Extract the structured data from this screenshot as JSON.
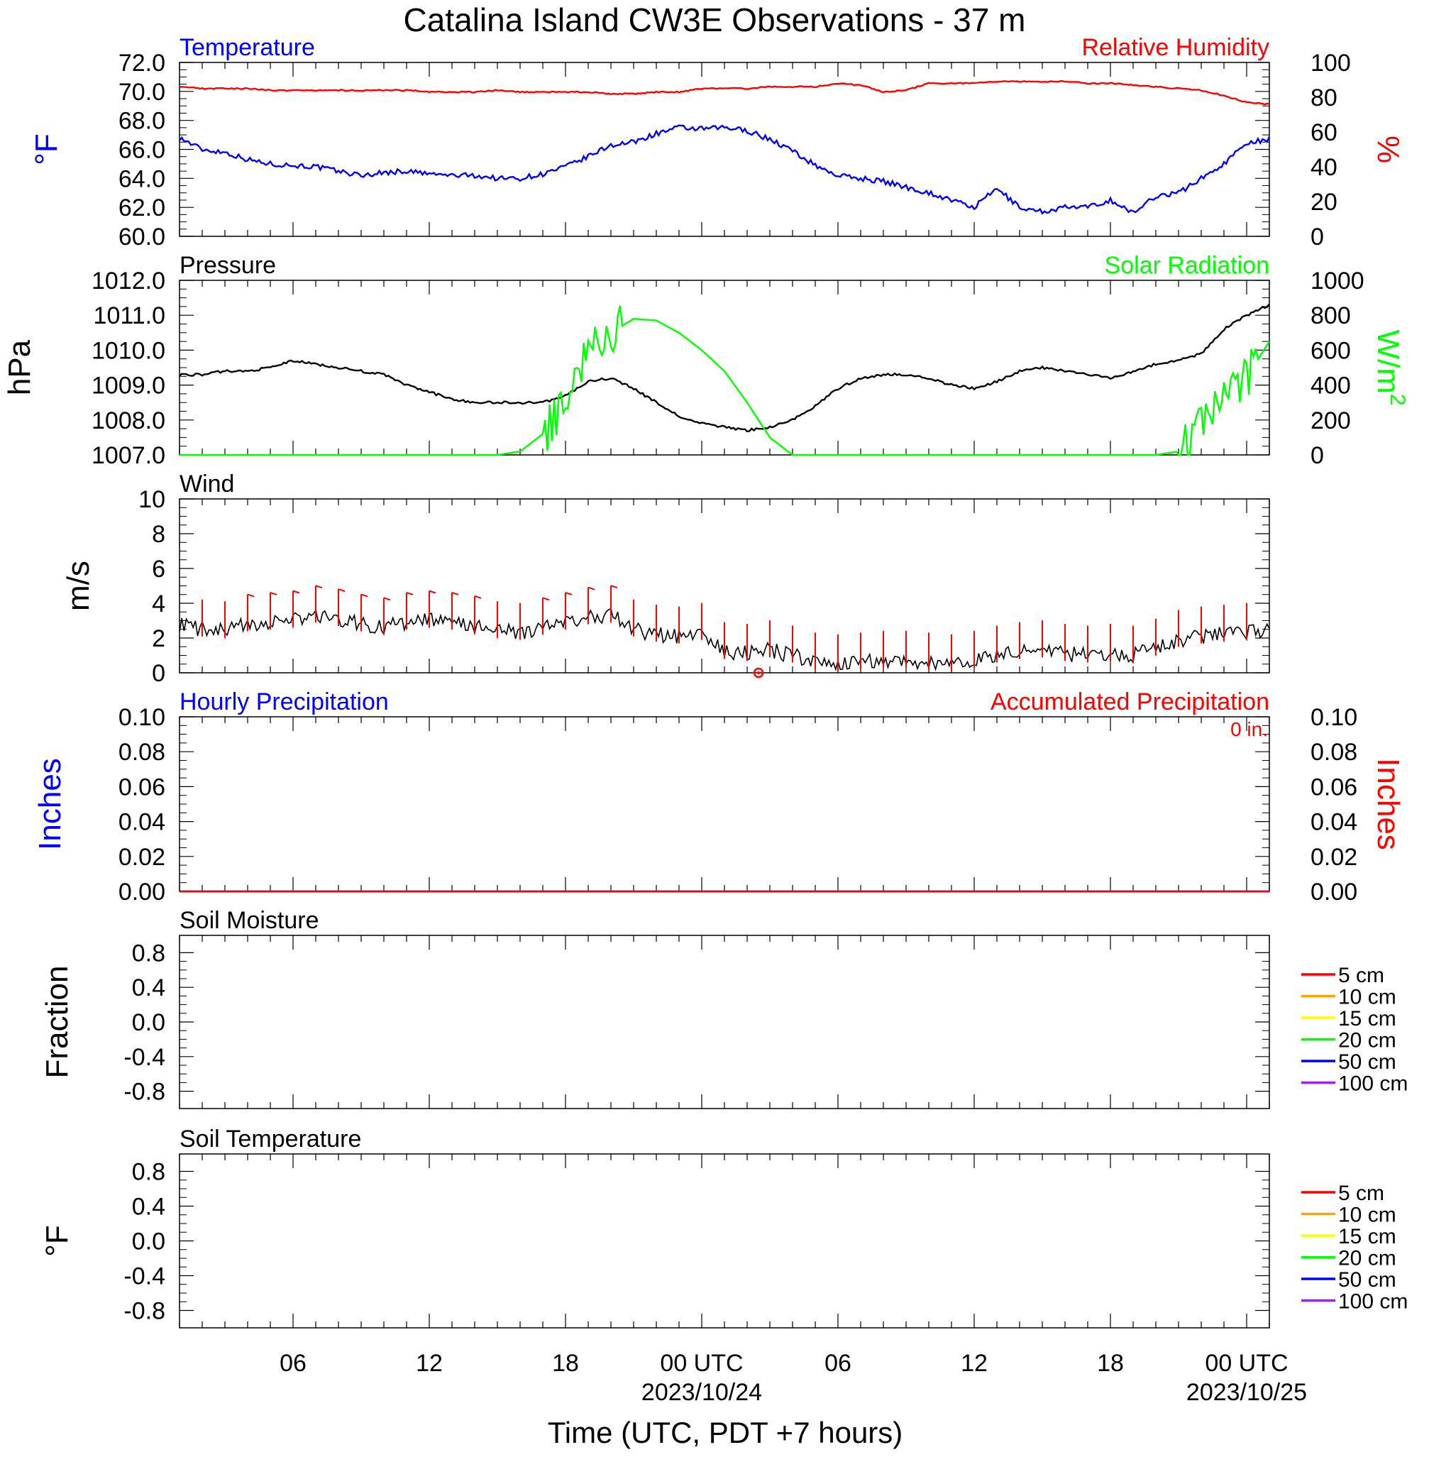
{
  "title": "Catalina Island CW3E Observations - 37 m",
  "colors": {
    "blue": "#0000ff",
    "red": "#ff0000",
    "green": "#00ff00",
    "black": "#000000",
    "orange": "#ffa500",
    "yellow": "#ffff00",
    "purple": "#a020f0"
  },
  "time_axis": {
    "label": "Time (UTC, PDT +7 hours)",
    "start": "2023-10-23T01:00Z",
    "end": "2023-10-25T01:00Z",
    "ticks": [
      {
        "label": "06",
        "date": ""
      },
      {
        "label": "12",
        "date": ""
      },
      {
        "label": "18",
        "date": ""
      },
      {
        "label": "00 UTC",
        "date": "2023/10/24"
      },
      {
        "label": "06",
        "date": ""
      },
      {
        "label": "12",
        "date": ""
      },
      {
        "label": "18",
        "date": ""
      },
      {
        "label": "00 UTC",
        "date": "2023/10/25"
      }
    ]
  },
  "chart_data": [
    {
      "type": "line",
      "panel": "temperature_rh",
      "left_title": "Temperature",
      "right_title": "Relative Humidity",
      "ylabel_left": "°F",
      "ylabel_right": "%",
      "ylim_left": [
        60,
        72
      ],
      "ylim_right": [
        0,
        100
      ],
      "yticks_left": [
        "72.0",
        "70.0",
        "68.0",
        "66.0",
        "64.0",
        "62.0",
        "60.0"
      ],
      "yticks_right": [
        "100",
        "80",
        "60",
        "40",
        "20",
        "0"
      ],
      "x_hours": [
        0,
        1,
        2,
        3,
        4,
        5,
        6,
        7,
        8,
        9,
        10,
        11,
        12,
        13,
        14,
        15,
        16,
        17,
        18,
        19,
        20,
        21,
        22,
        23,
        24,
        25,
        26,
        27,
        28,
        29,
        30,
        31,
        32,
        33,
        34,
        35,
        36,
        37,
        38,
        39,
        40,
        41,
        42,
        43,
        44,
        45,
        46,
        47,
        48
      ],
      "series": [
        {
          "name": "Temperature",
          "axis": "left",
          "color": "blue",
          "values": [
            66.8,
            66.0,
            65.8,
            65.3,
            65.0,
            64.9,
            64.8,
            64.5,
            64.2,
            64.4,
            64.5,
            64.3,
            64.2,
            64.2,
            64.0,
            64.0,
            64.3,
            64.8,
            65.5,
            66.3,
            66.5,
            67.1,
            67.5,
            67.4,
            67.5,
            67.3,
            66.7,
            65.9,
            64.9,
            64.2,
            64.0,
            63.8,
            63.4,
            63.0,
            62.5,
            62.0,
            63.3,
            62.0,
            61.7,
            62.0,
            62.0,
            62.5,
            61.6,
            62.8,
            63.0,
            64.0,
            65.0,
            66.5,
            66.7
          ]
        },
        {
          "name": "Relative Humidity",
          "axis": "right",
          "color": "red",
          "values": [
            86,
            85,
            85,
            85,
            84,
            84,
            84,
            84,
            84,
            84,
            84,
            83,
            83,
            83,
            84,
            83,
            83,
            83,
            83,
            82,
            82,
            83,
            83,
            85,
            85,
            85,
            86,
            86,
            86,
            88,
            87,
            83,
            84,
            88,
            88,
            88,
            89,
            89,
            89,
            89,
            88,
            88,
            87,
            86,
            85,
            84,
            81,
            77,
            76
          ]
        }
      ]
    },
    {
      "type": "line",
      "panel": "pressure_solar",
      "left_title": "Pressure",
      "right_title": "Solar Radiation",
      "ylabel_left": "hPa",
      "ylabel_right": "W/m",
      "ylabel_right_sup": "2",
      "ylim_left": [
        1007,
        1012
      ],
      "ylim_right": [
        0,
        1000
      ],
      "yticks_left": [
        "1012.0",
        "1011.0",
        "1010.0",
        "1009.0",
        "1008.0",
        "1007.0"
      ],
      "yticks_right": [
        "1000",
        "800",
        "600",
        "400",
        "200",
        "0"
      ],
      "series": [
        {
          "name": "Pressure",
          "axis": "left",
          "color": "black",
          "values": [
            1009.3,
            1009.3,
            1009.4,
            1009.4,
            1009.5,
            1009.7,
            1009.6,
            1009.5,
            1009.4,
            1009.3,
            1009.0,
            1008.8,
            1008.6,
            1008.5,
            1008.5,
            1008.5,
            1008.5,
            1008.7,
            1009.1,
            1009.2,
            1008.9,
            1008.5,
            1008.1,
            1007.9,
            1007.8,
            1007.7,
            1007.8,
            1008.0,
            1008.4,
            1008.9,
            1009.2,
            1009.3,
            1009.3,
            1009.2,
            1009.0,
            1008.9,
            1009.1,
            1009.4,
            1009.5,
            1009.4,
            1009.3,
            1009.2,
            1009.4,
            1009.6,
            1009.7,
            1009.9,
            1010.6,
            1011.0,
            1011.3
          ]
        },
        {
          "name": "Solar Radiation",
          "axis": "right",
          "color": "green",
          "values": [
            0,
            0,
            0,
            0,
            0,
            0,
            0,
            0,
            0,
            0,
            0,
            0,
            0,
            0,
            0,
            20,
            120,
            280,
            600,
            700,
            780,
            770,
            700,
            600,
            480,
            300,
            100,
            0,
            0,
            0,
            0,
            0,
            0,
            0,
            0,
            0,
            0,
            0,
            0,
            0,
            0,
            0,
            0,
            0,
            20,
            150,
            300,
            450,
            650
          ]
        }
      ]
    },
    {
      "type": "line",
      "panel": "wind",
      "left_title": "Wind",
      "ylabel_left": "m/s",
      "ylim_left": [
        0,
        10
      ],
      "yticks_left": [
        "10",
        "8",
        "6",
        "4",
        "2",
        "0"
      ],
      "series": [
        {
          "name": "Wind",
          "axis": "left",
          "color": "black",
          "values": [
            2.8,
            2.5,
            2.4,
            2.8,
            2.9,
            3.0,
            3.3,
            3.1,
            2.8,
            2.6,
            2.9,
            3.0,
            2.9,
            2.7,
            2.4,
            2.3,
            2.6,
            2.9,
            3.2,
            3.3,
            2.5,
            2.2,
            2.1,
            2.3,
            1.2,
            1.1,
            1.3,
            1.0,
            0.6,
            0.5,
            0.6,
            0.7,
            0.7,
            0.6,
            0.5,
            0.7,
            1.0,
            1.2,
            1.3,
            1.1,
            1.0,
            1.1,
            1.0,
            1.4,
            1.9,
            2.1,
            2.2,
            2.3,
            2.4
          ]
        }
      ],
      "calm_marker_hour": 25.5
    },
    {
      "type": "line",
      "panel": "precipitation",
      "left_title": "Hourly Precipitation",
      "right_title": "Accumulated Precipitation",
      "accum_text": "0 in.",
      "ylabel_left": "Inches",
      "ylabel_right": "Inches",
      "ylim_left": [
        0,
        0.1
      ],
      "ylim_right": [
        0,
        0.1
      ],
      "yticks_left": [
        "0.10",
        "0.08",
        "0.06",
        "0.04",
        "0.02",
        "0.00"
      ],
      "yticks_right": [
        "0.10",
        "0.08",
        "0.06",
        "0.04",
        "0.02",
        "0.00"
      ],
      "series": [
        {
          "name": "Hourly Precipitation",
          "axis": "left",
          "color": "blue",
          "values": [
            0,
            0
          ]
        },
        {
          "name": "Accumulated Precipitation",
          "axis": "right",
          "color": "red",
          "values": [
            0,
            0
          ]
        }
      ]
    },
    {
      "type": "line",
      "panel": "soil_moisture",
      "left_title": "Soil Moisture",
      "ylabel_left": "Fraction",
      "ylim_left": [
        -1,
        1
      ],
      "yticks_left": [
        "0.8",
        "0.4",
        "0.0",
        "-0.4",
        "-0.8"
      ],
      "legend": [
        {
          "label": "5 cm",
          "color": "red"
        },
        {
          "label": "10 cm",
          "color": "orange"
        },
        {
          "label": "15 cm",
          "color": "yellow"
        },
        {
          "label": "20 cm",
          "color": "green"
        },
        {
          "label": "50 cm",
          "color": "blue"
        },
        {
          "label": "100 cm",
          "color": "purple"
        }
      ]
    },
    {
      "type": "line",
      "panel": "soil_temperature",
      "left_title": "Soil Temperature",
      "ylabel_left": "°F",
      "ylim_left": [
        -1,
        1
      ],
      "yticks_left": [
        "0.8",
        "0.4",
        "0.0",
        "-0.4",
        "-0.8"
      ],
      "legend": [
        {
          "label": "5 cm",
          "color": "red"
        },
        {
          "label": "10 cm",
          "color": "orange"
        },
        {
          "label": "15 cm",
          "color": "yellow"
        },
        {
          "label": "20 cm",
          "color": "green"
        },
        {
          "label": "50 cm",
          "color": "blue"
        },
        {
          "label": "100 cm",
          "color": "purple"
        }
      ]
    }
  ]
}
